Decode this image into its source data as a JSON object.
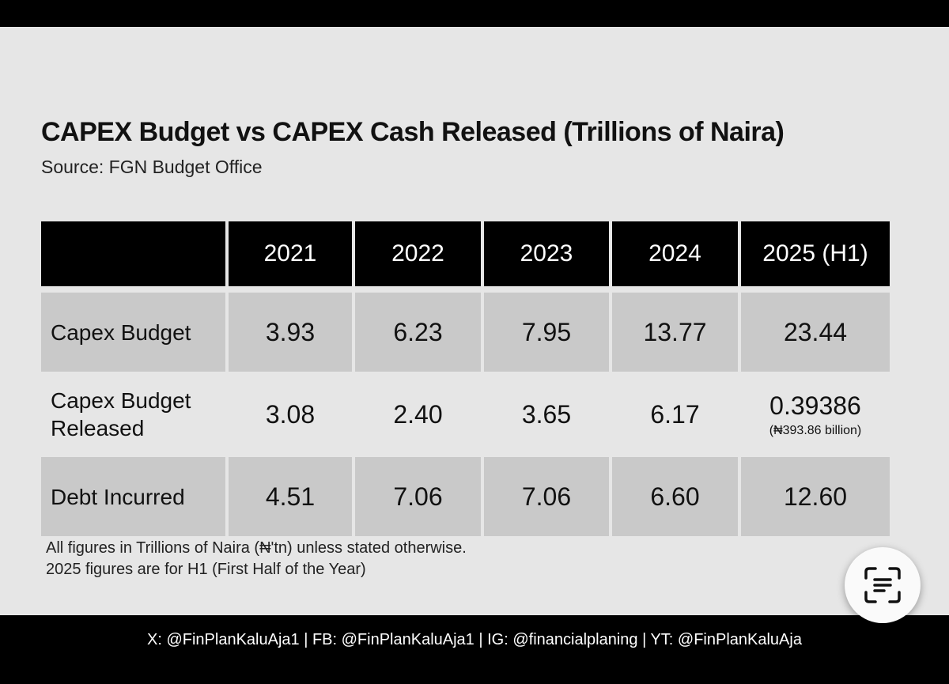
{
  "title": "CAPEX Budget vs CAPEX Cash Released (Trillions of Naira)",
  "source": "Source: FGN Budget Office",
  "table": {
    "columns": [
      "2021",
      "2022",
      "2023",
      "2024",
      "2025 (H1)"
    ],
    "rows": [
      {
        "label": "Capex Budget",
        "values": [
          "3.93",
          "6.23",
          "7.95",
          "13.77",
          "23.44"
        ]
      },
      {
        "label": "Capex Budget Released",
        "values": [
          "3.08",
          "2.40",
          "3.65",
          "6.17",
          "0.39386"
        ],
        "note": "(₦393.86 billion)"
      },
      {
        "label": "Debt Incurred",
        "values": [
          "4.51",
          "7.06",
          "7.06",
          "6.60",
          "12.60"
        ]
      }
    ]
  },
  "notes": [
    "All figures in Trillions of Naira (₦'tn) unless stated otherwise.",
    "2025 figures are for H1 (First Half of the Year)"
  ],
  "footer": "X: @FinPlanKaluAja1 | FB: @FinPlanKaluAja1 | IG: @financialplaning | YT: @FinPlanKaluAja",
  "scan_button": {
    "icon": "text-scan-icon"
  }
}
